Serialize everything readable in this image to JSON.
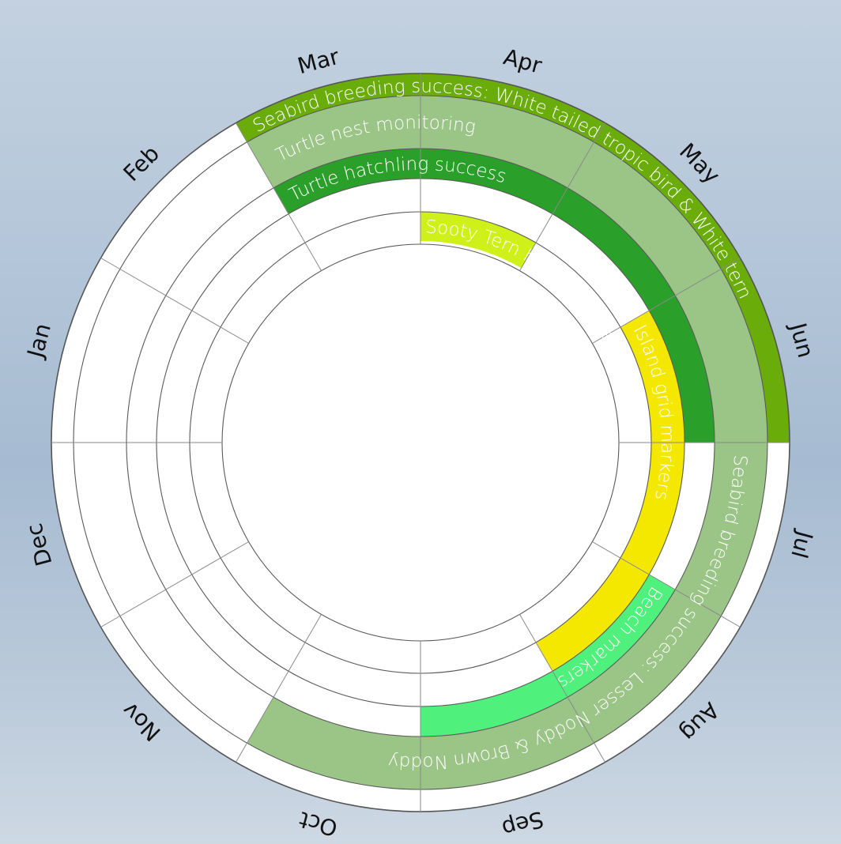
{
  "chart_data": {
    "type": "radial-calendar",
    "months": [
      "Jan",
      "Feb",
      "Mar",
      "Apr",
      "May",
      "Jun",
      "Jul",
      "Aug",
      "Sep",
      "Oct",
      "Nov",
      "Dec"
    ],
    "rings": 5,
    "activities": [
      {
        "label": "Seabird breeding success: White tailed tropic bird & White tern",
        "ring": 0,
        "start_month": 1.5,
        "end_month": 5.5,
        "color": "#6aac0a",
        "text_color": "#ffffff"
      },
      {
        "label": "Seabird breeding success: Lesser Noddy & Brown Noddy",
        "ring": 1,
        "start_month": 5.5,
        "end_month": 9.5,
        "color": "#5ee816",
        "text_color": "#ffffff"
      },
      {
        "label": "Turtle nest monitoring",
        "ring": 1,
        "start_month": 1.5,
        "end_month": 9.5,
        "color": "#9bc487",
        "text_color": "#ffffff"
      },
      {
        "label": "Turtle hatchling success",
        "ring": 2,
        "start_month": 1.5,
        "end_month": 5.5,
        "color": "#2aa02a",
        "text_color": "#ffffff"
      },
      {
        "label": "Beach markers",
        "ring": 2,
        "start_month": 6.5,
        "end_month": 8.5,
        "color": "#4ff07c",
        "text_color": "#ffffff"
      },
      {
        "label": "Island grid markers",
        "ring": 3,
        "start_month": 4.5,
        "end_month": 7.5,
        "color": "#f5e800",
        "text_color": "#ffffff"
      },
      {
        "label": "Sooty Tern hill clearance",
        "ring": 4,
        "start_month": 2.5,
        "end_month": 3.5,
        "color": "#d0f01a",
        "text_color": "#ffffff"
      }
    ]
  }
}
